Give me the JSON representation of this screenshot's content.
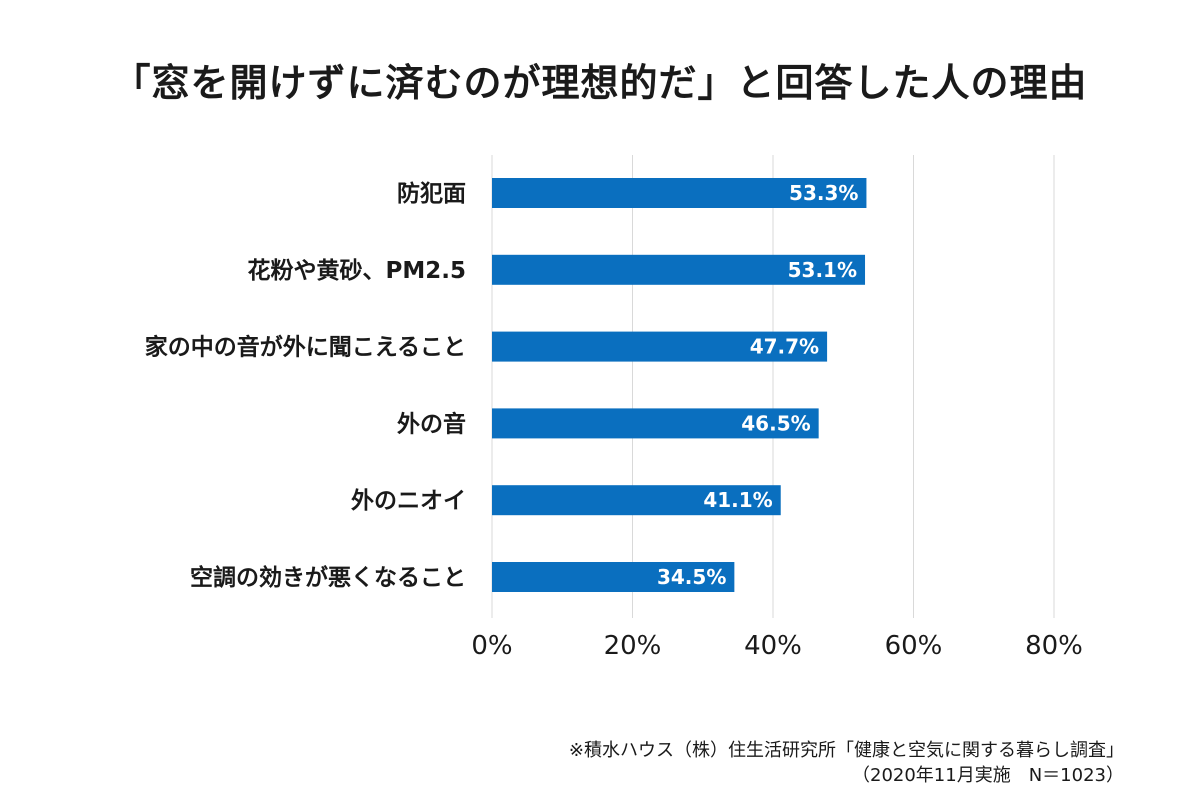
{
  "chart_data": {
    "type": "bar",
    "orientation": "horizontal",
    "title": "「窓を開けずに済むのが理想的だ」と回答した人の理由",
    "categories": [
      "防犯面",
      "花粉や黄砂、PM2.5",
      "家の中の音が外に聞こえること",
      "外の音",
      "外のニオイ",
      "空調の効きが悪くなること"
    ],
    "values": [
      53.3,
      53.1,
      47.7,
      46.5,
      41.1,
      34.5
    ],
    "value_labels": [
      "53.3%",
      "53.1%",
      "47.7%",
      "46.5%",
      "41.1%",
      "34.5%"
    ],
    "xlim": [
      0,
      80
    ],
    "xticks": [
      0,
      20,
      40,
      60,
      80
    ],
    "xtick_labels": [
      "0%",
      "20%",
      "40%",
      "60%",
      "80%"
    ],
    "xlabel": "",
    "ylabel": "",
    "grid": true,
    "bar_color": "#0a6fbf",
    "grid_color": "#d9d9d9"
  },
  "source": {
    "line1": "※積水ハウス（株）住生活研究所「健康と空気に関する暮らし調査」",
    "line2": "（2020年11月実施　N＝1023）"
  }
}
